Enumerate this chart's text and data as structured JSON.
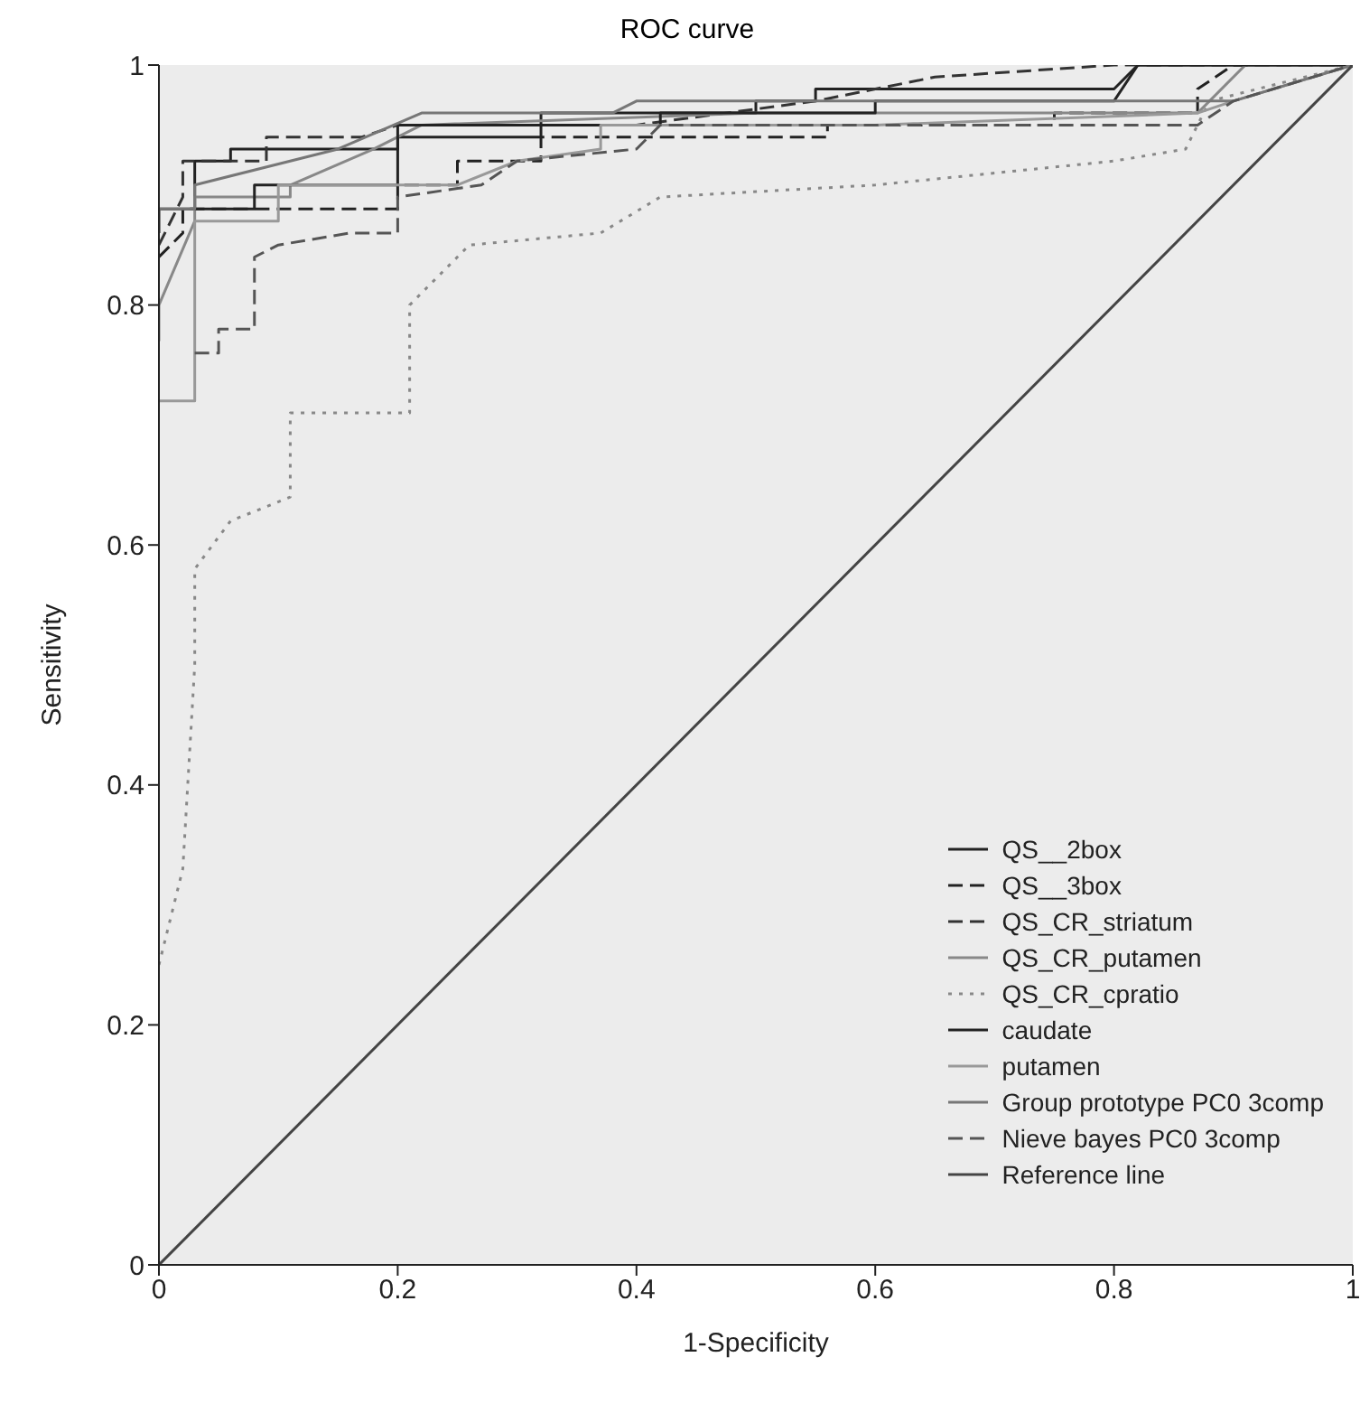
{
  "chart_data": {
    "type": "line",
    "title": "ROC curve",
    "xlabel": "1-Specificity",
    "ylabel": "Sensitivity",
    "xlim": [
      0,
      1
    ],
    "ylim": [
      0,
      1
    ],
    "xticks": [
      0,
      0.2,
      0.4,
      0.6,
      0.8,
      1
    ],
    "yticks": [
      0,
      0.2,
      0.4,
      0.6,
      0.8,
      1
    ],
    "legend": "bottom right",
    "grid": false,
    "marker": "none",
    "series": [
      {
        "name": "QS__2box",
        "color": "#222222",
        "line_style": "solid",
        "x": [
          0,
          0,
          0.03,
          0.03,
          0.06,
          0.06,
          0.2,
          0.2,
          0.32,
          0.32,
          0.5,
          0.5,
          0.55,
          0.55,
          0.8,
          0.82,
          1
        ],
        "values": [
          0.86,
          0.88,
          0.88,
          0.92,
          0.92,
          0.93,
          0.93,
          0.94,
          0.94,
          0.96,
          0.96,
          0.97,
          0.97,
          0.98,
          0.98,
          1,
          1
        ]
      },
      {
        "name": "QS__3box",
        "color": "#222222",
        "line_style": "dashed",
        "x": [
          0,
          0.02,
          0.02,
          0.2,
          0.2,
          0.25,
          0.25,
          0.32,
          0.32,
          0.56,
          0.56,
          0.75,
          0.75,
          0.87,
          0.87,
          0.9,
          1
        ],
        "values": [
          0.84,
          0.86,
          0.88,
          0.88,
          0.9,
          0.9,
          0.92,
          0.92,
          0.94,
          0.94,
          0.95,
          0.95,
          0.96,
          0.96,
          0.98,
          1,
          1
        ]
      },
      {
        "name": "QS_CR_striatum",
        "color": "#333333",
        "line_style": "dashed",
        "x": [
          0,
          0.02,
          0.02,
          0.09,
          0.09,
          0.17,
          0.2,
          0.4,
          0.55,
          0.65,
          0.8,
          1
        ],
        "values": [
          0.85,
          0.89,
          0.92,
          0.92,
          0.94,
          0.94,
          0.95,
          0.95,
          0.97,
          0.99,
          1,
          1
        ]
      },
      {
        "name": "QS_CR_putamen",
        "color": "#888888",
        "line_style": "solid",
        "x": [
          0,
          0,
          0.03,
          0.03,
          0.11,
          0.11,
          0.18,
          0.22,
          0.5,
          0.87,
          0.91,
          1
        ],
        "values": [
          0.77,
          0.8,
          0.87,
          0.89,
          0.89,
          0.9,
          0.93,
          0.95,
          0.96,
          0.96,
          1,
          1
        ]
      },
      {
        "name": "QS_CR_cpratio",
        "color": "#888888",
        "line_style": "dotted",
        "x": [
          0,
          0.02,
          0.03,
          0.03,
          0.06,
          0.11,
          0.11,
          0.21,
          0.21,
          0.26,
          0.37,
          0.42,
          0.6,
          0.8,
          0.86,
          0.88,
          1
        ],
        "values": [
          0.25,
          0.33,
          0.5,
          0.58,
          0.62,
          0.64,
          0.71,
          0.71,
          0.8,
          0.85,
          0.86,
          0.89,
          0.9,
          0.92,
          0.93,
          0.97,
          1
        ]
      },
      {
        "name": "caudate",
        "color": "#222222",
        "line_style": "solid",
        "x": [
          0.03,
          0.08,
          0.08,
          0.2,
          0.2,
          0.42,
          0.42,
          0.6,
          0.6,
          0.8,
          0.82,
          1
        ],
        "values": [
          0.88,
          0.88,
          0.9,
          0.9,
          0.95,
          0.95,
          0.96,
          0.96,
          0.97,
          0.97,
          1,
          1
        ]
      },
      {
        "name": "putamen",
        "color": "#999999",
        "line_style": "solid",
        "x": [
          0,
          0.03,
          0.03,
          0.1,
          0.1,
          0.25,
          0.3,
          0.37,
          0.37,
          0.6,
          0.87,
          0.9,
          1
        ],
        "values": [
          0.72,
          0.72,
          0.87,
          0.87,
          0.9,
          0.9,
          0.92,
          0.93,
          0.95,
          0.95,
          0.96,
          0.97,
          1
        ]
      },
      {
        "name": "Group prototype PC0 3comp",
        "color": "#777777",
        "line_style": "solid",
        "x": [
          0,
          0.03,
          0.03,
          0.15,
          0.22,
          0.38,
          0.4,
          0.9,
          1
        ],
        "values": [
          0.88,
          0.88,
          0.9,
          0.93,
          0.96,
          0.96,
          0.97,
          0.97,
          1
        ]
      },
      {
        "name": "Nieve bayes PC0 3comp",
        "color": "#555555",
        "line_style": "dashed",
        "x": [
          0.03,
          0.05,
          0.05,
          0.08,
          0.08,
          0.1,
          0.16,
          0.2,
          0.2,
          0.27,
          0.3,
          0.4,
          0.42,
          0.6,
          0.87,
          0.9,
          1
        ],
        "values": [
          0.76,
          0.76,
          0.78,
          0.78,
          0.84,
          0.85,
          0.86,
          0.86,
          0.89,
          0.9,
          0.92,
          0.93,
          0.95,
          0.95,
          0.95,
          0.97,
          1
        ]
      },
      {
        "name": "Reference line",
        "color": "#444444",
        "line_style": "solid",
        "x": [
          0,
          1
        ],
        "values": [
          0,
          1
        ]
      }
    ]
  }
}
